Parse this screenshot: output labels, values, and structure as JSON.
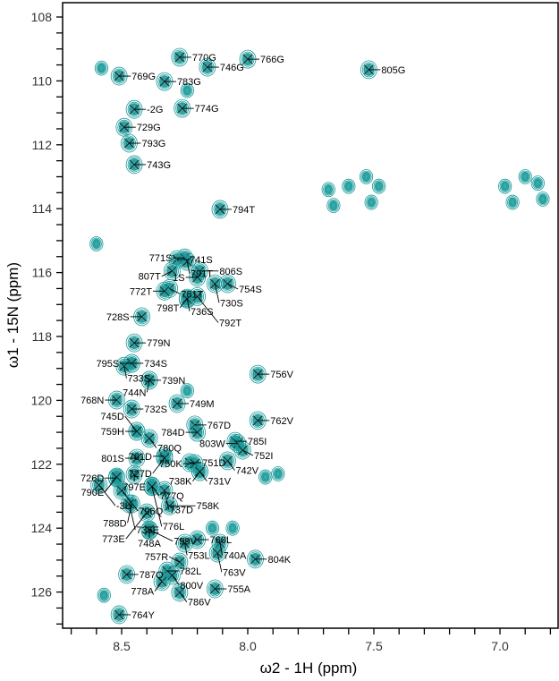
{
  "chart_data": {
    "type": "scatter",
    "title": "",
    "xlabel": "ω2 - 1H (ppm)",
    "ylabel": "ω1 - 15N (ppm)",
    "xlim": [
      8.73,
      6.77
    ],
    "ylim": [
      107.55,
      127.1
    ],
    "x_reversed": true,
    "y_reversed": true,
    "x_ticks": [
      "8.5",
      "8.0",
      "7.5",
      "7.0"
    ],
    "y_ticks": [
      "108",
      "110",
      "112",
      "114",
      "116",
      "118",
      "120",
      "122",
      "124",
      "126"
    ],
    "color": "#1a9a9a",
    "peaks": [
      {
        "label": "770G",
        "h": 8.27,
        "n": 109.26
      },
      {
        "label": "746G",
        "h": 8.16,
        "n": 109.57
      },
      {
        "label": "766G",
        "h": 8.0,
        "n": 109.32
      },
      {
        "label": "769G",
        "h": 8.51,
        "n": 109.85
      },
      {
        "label": "783G",
        "h": 8.33,
        "n": 110.02
      },
      {
        "label": "774G",
        "h": 8.26,
        "n": 110.86
      },
      {
        "label": "-2G",
        "h": 8.45,
        "n": 110.89
      },
      {
        "label": "729G",
        "h": 8.49,
        "n": 111.45
      },
      {
        "label": "793G",
        "h": 8.47,
        "n": 111.95
      },
      {
        "label": "743G",
        "h": 8.45,
        "n": 112.62
      },
      {
        "label": "805G",
        "h": 7.52,
        "n": 109.65
      },
      {
        "label": "794T",
        "h": 8.11,
        "n": 114.02
      },
      {
        "label": "741S",
        "h": 8.28,
        "n": 115.59
      },
      {
        "label": "771S",
        "h": 8.25,
        "n": 115.54
      },
      {
        "label": "791T",
        "h": 8.24,
        "n": 115.65
      },
      {
        "label": "806S",
        "h": 8.19,
        "n": 115.95
      },
      {
        "label": "1S",
        "h": 8.2,
        "n": 116.15
      },
      {
        "label": "807T",
        "h": 8.3,
        "n": 115.95
      },
      {
        "label": "781T",
        "h": 8.31,
        "n": 116.5
      },
      {
        "label": "772T",
        "h": 8.33,
        "n": 116.58
      },
      {
        "label": "754S",
        "h": 8.08,
        "n": 116.35
      },
      {
        "label": "730S",
        "h": 8.13,
        "n": 116.35
      },
      {
        "label": "798T",
        "h": 8.24,
        "n": 116.8
      },
      {
        "label": "736S",
        "h": 8.24,
        "n": 116.83
      },
      {
        "label": "792T",
        "h": 8.2,
        "n": 116.75
      },
      {
        "label": "728S",
        "h": 8.42,
        "n": 117.38
      },
      {
        "label": "779N",
        "h": 8.45,
        "n": 118.2
      },
      {
        "label": "734S",
        "h": 8.46,
        "n": 118.84
      },
      {
        "label": "795S",
        "h": 8.46,
        "n": 118.84
      },
      {
        "label": "733S",
        "h": 8.49,
        "n": 118.93
      },
      {
        "label": "739N",
        "h": 8.39,
        "n": 119.37
      },
      {
        "label": "744N",
        "h": 8.39,
        "n": 119.37
      },
      {
        "label": "756V",
        "h": 7.96,
        "n": 119.18
      },
      {
        "label": "768N",
        "h": 8.52,
        "n": 119.99
      },
      {
        "label": "749M",
        "h": 8.28,
        "n": 120.1
      },
      {
        "label": "732S",
        "h": 8.46,
        "n": 120.27
      },
      {
        "label": "762V",
        "h": 7.96,
        "n": 120.63
      },
      {
        "label": "767D",
        "h": 8.21,
        "n": 120.77
      },
      {
        "label": "784D",
        "h": 8.2,
        "n": 121.0
      },
      {
        "label": "759H",
        "h": 8.44,
        "n": 120.97
      },
      {
        "label": "780Q",
        "h": 8.39,
        "n": 121.19
      },
      {
        "label": "745D",
        "h": 8.44,
        "n": 120.97
      },
      {
        "label": "761D",
        "h": 8.33,
        "n": 121.75
      },
      {
        "label": "785I",
        "h": 8.05,
        "n": 121.28
      },
      {
        "label": "803W",
        "h": 8.04,
        "n": 121.35
      },
      {
        "label": "751D",
        "h": 8.23,
        "n": 121.95
      },
      {
        "label": "752I",
        "h": 8.02,
        "n": 121.56
      },
      {
        "label": "742V",
        "h": 8.08,
        "n": 121.89
      },
      {
        "label": "750K",
        "h": 8.21,
        "n": 121.98
      },
      {
        "label": "801S",
        "h": 8.44,
        "n": 121.81
      },
      {
        "label": "727D",
        "h": 8.33,
        "n": 121.81
      },
      {
        "label": "731V",
        "h": 8.19,
        "n": 122.23
      },
      {
        "label": "738K",
        "h": 8.19,
        "n": 122.23
      },
      {
        "label": "726D",
        "h": 8.52,
        "n": 122.43
      },
      {
        "label": "797E",
        "h": 8.45,
        "n": 122.32
      },
      {
        "label": "790E",
        "h": 8.52,
        "n": 122.4
      },
      {
        "label": "-3L",
        "h": 8.59,
        "n": 122.65
      },
      {
        "label": "777Q",
        "h": 8.38,
        "n": 122.68
      },
      {
        "label": "737D",
        "h": 8.33,
        "n": 122.82
      },
      {
        "label": "796Q",
        "h": 8.5,
        "n": 122.82
      },
      {
        "label": "788D",
        "h": 8.46,
        "n": 123.24
      },
      {
        "label": "776L",
        "h": 8.38,
        "n": 122.7
      },
      {
        "label": "758K",
        "h": 8.31,
        "n": 123.3
      },
      {
        "label": "735E",
        "h": 8.47,
        "n": 123.24
      },
      {
        "label": "773E",
        "h": 8.4,
        "n": 123.52
      },
      {
        "label": "748A",
        "h": 8.39,
        "n": 124.08
      },
      {
        "label": "799V",
        "h": 8.39,
        "n": 124.05
      },
      {
        "label": "753L",
        "h": 8.25,
        "n": 124.47
      },
      {
        "label": "760L",
        "h": 8.2,
        "n": 124.36
      },
      {
        "label": "740A",
        "h": 8.11,
        "n": 124.47
      },
      {
        "label": "763V",
        "h": 8.12,
        "n": 124.78
      },
      {
        "label": "804K",
        "h": 7.97,
        "n": 124.97
      },
      {
        "label": "782L",
        "h": 8.32,
        "n": 125.34
      },
      {
        "label": "787Q",
        "h": 8.48,
        "n": 125.45
      },
      {
        "label": "757R",
        "h": 8.27,
        "n": 125.06
      },
      {
        "label": "800V",
        "h": 8.3,
        "n": 125.48
      },
      {
        "label": "778A",
        "h": 8.34,
        "n": 125.67
      },
      {
        "label": "786V",
        "h": 8.27,
        "n": 126.01
      },
      {
        "label": "755A",
        "h": 8.13,
        "n": 125.9
      },
      {
        "label": "764Y",
        "h": 8.51,
        "n": 126.71
      }
    ],
    "unlabeled_peaks": [
      {
        "h": 8.58,
        "n": 109.6
      },
      {
        "h": 8.24,
        "n": 110.3
      },
      {
        "h": 8.6,
        "n": 115.1
      },
      {
        "h": 8.24,
        "n": 119.7
      },
      {
        "h": 7.93,
        "n": 122.4
      },
      {
        "h": 7.88,
        "n": 122.3
      },
      {
        "h": 8.57,
        "n": 126.1
      },
      {
        "h": 8.06,
        "n": 124.0
      },
      {
        "h": 8.14,
        "n": 124.0
      },
      {
        "h": 7.68,
        "n": 113.4
      },
      {
        "h": 7.66,
        "n": 113.9
      },
      {
        "h": 7.6,
        "n": 113.3
      },
      {
        "h": 7.53,
        "n": 113.0
      },
      {
        "h": 7.48,
        "n": 113.3
      },
      {
        "h": 7.51,
        "n": 113.8
      },
      {
        "h": 6.98,
        "n": 113.3
      },
      {
        "h": 6.95,
        "n": 113.8
      },
      {
        "h": 6.9,
        "n": 113.0
      },
      {
        "h": 6.85,
        "n": 113.2
      },
      {
        "h": 6.83,
        "n": 113.7
      }
    ]
  }
}
